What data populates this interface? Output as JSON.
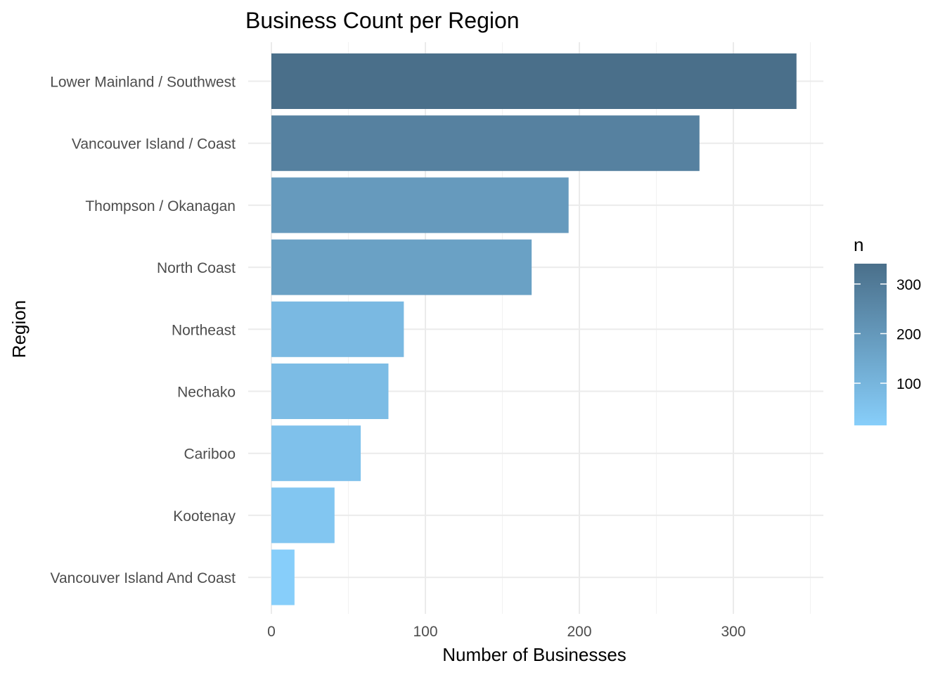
{
  "chart_data": {
    "type": "bar",
    "orientation": "horizontal",
    "title": "Business Count per Region",
    "xlabel": "Number of Businesses",
    "ylabel": "Region",
    "categories": [
      "Lower Mainland / Southwest",
      "Vancouver Island / Coast",
      "Thompson / Okanagan",
      "North Coast",
      "Northeast",
      "Nechako",
      "Cariboo",
      "Kootenay",
      "Vancouver Island And Coast"
    ],
    "values": [
      341,
      278,
      193,
      169,
      86,
      76,
      58,
      41,
      15
    ],
    "xlim": [
      0,
      358
    ],
    "xticks": [
      0,
      100,
      200,
      300
    ],
    "grid": true,
    "legend": {
      "title": "n",
      "placement": "right",
      "type": "gradient",
      "range": [
        15,
        341
      ],
      "ticks": [
        100,
        200,
        300
      ],
      "color_low": "#87CEFA",
      "color_high": "#4A6F8A"
    }
  }
}
